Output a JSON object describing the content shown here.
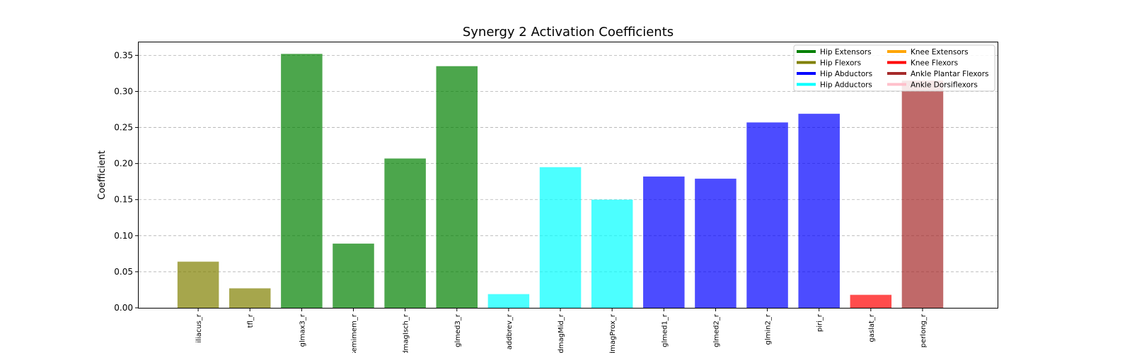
{
  "chart_data": {
    "type": "bar",
    "title": "Synergy 2 Activation Coefficients",
    "xlabel": "",
    "ylabel": "Coefficient",
    "ylim": [
      0,
      0.368
    ],
    "yticks": [
      "0.00",
      "0.05",
      "0.10",
      "0.15",
      "0.20",
      "0.25",
      "0.30",
      "0.35"
    ],
    "grid": "y-dashed",
    "legend_position": "top-right",
    "categories": [
      "iliacus_r",
      "tfl_r",
      "glmax3_r",
      "semimem_r",
      "addmagIsch_r",
      "glmed3_r",
      "addbrev_r",
      "addmagMid_r",
      "addmagProx_r",
      "glmed1_r",
      "glmed2_r",
      "glmin2_r",
      "piri_r",
      "gaslat_r",
      "perlong_r"
    ],
    "values": [
      0.064,
      0.027,
      0.352,
      0.089,
      0.207,
      0.335,
      0.019,
      0.195,
      0.15,
      0.182,
      0.179,
      0.257,
      0.269,
      0.018,
      0.315
    ],
    "bar_groups": [
      "Hip Flexors",
      "Hip Flexors",
      "Hip Extensors",
      "Hip Extensors",
      "Hip Extensors",
      "Hip Extensors",
      "Hip Adductors",
      "Hip Adductors",
      "Hip Adductors",
      "Hip Abductors",
      "Hip Abductors",
      "Hip Abductors",
      "Hip Abductors",
      "Knee Flexors",
      "Ankle Plantar Flexors"
    ],
    "legend": [
      {
        "name": "Hip Extensors",
        "color": "#008000"
      },
      {
        "name": "Hip Flexors",
        "color": "#808000"
      },
      {
        "name": "Hip Abductors",
        "color": "#0000ff"
      },
      {
        "name": "Hip Adductors",
        "color": "#00ffff"
      },
      {
        "name": "Knee Extensors",
        "color": "#ffa500"
      },
      {
        "name": "Knee Flexors",
        "color": "#ff0000"
      },
      {
        "name": "Ankle Plantar Flexors",
        "color": "#a52a2a"
      },
      {
        "name": "Ankle Dorsiflexors",
        "color": "#ffc0cb"
      }
    ]
  }
}
